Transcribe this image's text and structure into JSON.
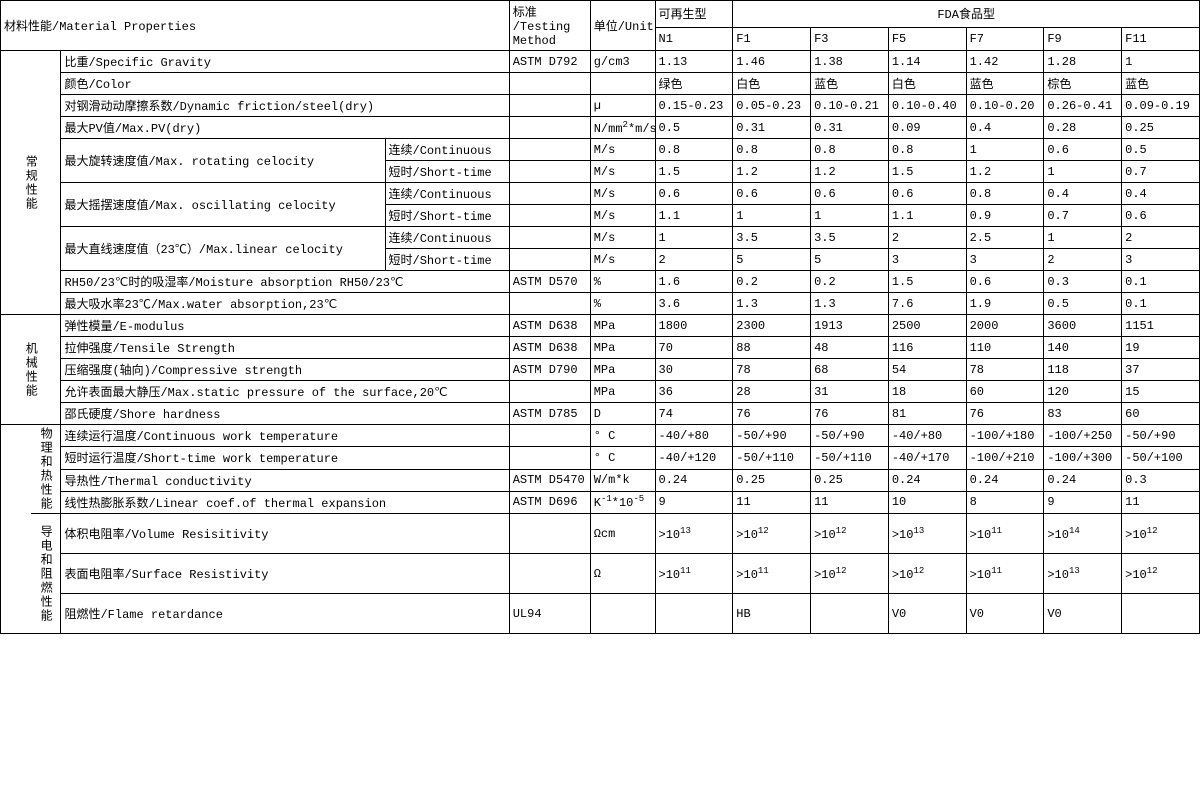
{
  "header": {
    "material_properties": "材料性能/Material Properties",
    "testing_method": "标准\n/Testing\nMethod",
    "unit": "单位/Unit",
    "renewable": "可再生型",
    "fda_food": "FDA食品型",
    "cols": [
      "N1",
      "F1",
      "F3",
      "F5",
      "F7",
      "F9",
      "F11"
    ]
  },
  "categories": {
    "general": "常规性能",
    "mechanical": "机械性能",
    "phys_therm": "物理和热性能",
    "elec_flame": "导电和阻燃性能"
  },
  "sub": {
    "continuous": "连续/Continuous",
    "short_time": "短时/Short-time"
  },
  "props": {
    "specific_gravity": "比重/Specific Gravity",
    "color": "颜色/Color",
    "dyn_friction": "对钢滑动动摩擦系数/Dynamic friction/steel(dry)",
    "max_pv": "最大PV值/Max.PV(dry)",
    "max_rot": "最大旋转速度值/Max. rotating celocity",
    "max_osc": "最大摇摆速度值/Max. oscillating celocity",
    "max_lin": "最大直线速度值（23℃）/Max.linear celocity",
    "moisture": "RH50/23℃时的吸湿率/Moisture absorption RH50/23℃",
    "max_water": "最大吸水率23℃/Max.water absorption,23℃",
    "e_modulus": "弹性模量/E-modulus",
    "tensile": "拉伸强度/Tensile Strength",
    "compressive": "压缩强度(轴向)/Compressive strength",
    "max_static": "允许表面最大静压/Max.static pressure of the surface,20℃",
    "shore": "邵氏硬度/Shore hardness",
    "cont_temp": "连续运行温度/Continuous work temperature",
    "short_temp": "短时运行温度/Short-time work temperature",
    "therm_cond": "导热性/Thermal conductivity",
    "lin_exp": "线性热膨胀系数/Linear coef.of thermal expansion",
    "vol_res": "体积电阻率/Volume Resisitivity",
    "surf_res": "表面电阻率/Surface Resistivity",
    "flame": "阻燃性/Flame retardance"
  },
  "std": {
    "specific_gravity": "ASTM D792",
    "moisture": "ASTM D570",
    "e_modulus": "ASTM D638",
    "tensile": "ASTM D638",
    "compressive": "ASTM D790",
    "shore": "ASTM D785",
    "therm_cond": "ASTM D5470",
    "lin_exp": "ASTM D696",
    "flame": "UL94"
  },
  "unit": {
    "specific_gravity": "g/cm3",
    "dyn_friction": "µ",
    "max_pv_html": "N/mm<sup>2</sup>*m/s",
    "ms": "M/s",
    "pct": "%",
    "mpa": "MPa",
    "d": "D",
    "degc": "° C",
    "wmk": "W/m*k",
    "lin_exp_html": "K<sup>-1</sup>*10<sup>-5</sup>",
    "ohmcm": "Ωcm",
    "ohm": "Ω"
  },
  "v": {
    "specific_gravity": [
      "1.13",
      "1.46",
      "1.38",
      "1.14",
      "1.42",
      "1.28",
      "1"
    ],
    "color": [
      "绿色",
      "白色",
      "蓝色",
      "白色",
      "蓝色",
      "棕色",
      "蓝色"
    ],
    "dyn_friction": [
      "0.15-0.23",
      "0.05-0.23",
      "0.10-0.21",
      "0.10-0.40",
      "0.10-0.20",
      "0.26-0.41",
      "0.09-0.19"
    ],
    "max_pv": [
      "0.5",
      "0.31",
      "0.31",
      "0.09",
      "0.4",
      "0.28",
      "0.25"
    ],
    "max_rot_c": [
      "0.8",
      "0.8",
      "0.8",
      "0.8",
      "1",
      "0.6",
      "0.5"
    ],
    "max_rot_s": [
      "1.5",
      "1.2",
      "1.2",
      "1.5",
      "1.2",
      "1",
      "0.7"
    ],
    "max_osc_c": [
      "0.6",
      "0.6",
      "0.6",
      "0.6",
      "0.8",
      "0.4",
      "0.4"
    ],
    "max_osc_s": [
      "1.1",
      "1",
      "1",
      "1.1",
      "0.9",
      "0.7",
      "0.6"
    ],
    "max_lin_c": [
      "1",
      "3.5",
      "3.5",
      "2",
      "2.5",
      "1",
      "2"
    ],
    "max_lin_s": [
      "2",
      "5",
      "5",
      "3",
      "3",
      "2",
      "3"
    ],
    "moisture": [
      "1.6",
      "0.2",
      "0.2",
      "1.5",
      "0.6",
      "0.3",
      "0.1"
    ],
    "max_water": [
      "3.6",
      "1.3",
      "1.3",
      "7.6",
      "1.9",
      "0.5",
      "0.1"
    ],
    "e_modulus": [
      "1800",
      "2300",
      "1913",
      "2500",
      "2000",
      "3600",
      "1151"
    ],
    "tensile": [
      "70",
      "88",
      "48",
      "116",
      "110",
      "140",
      "19"
    ],
    "compressive": [
      "30",
      "78",
      "68",
      "54",
      "78",
      "118",
      "37"
    ],
    "max_static": [
      "36",
      "28",
      "31",
      "18",
      "60",
      "120",
      "15"
    ],
    "shore": [
      "74",
      "76",
      "76",
      "81",
      "76",
      "83",
      "60"
    ],
    "cont_temp": [
      "-40/+80",
      "-50/+90",
      "-50/+90",
      "-40/+80",
      "-100/+180",
      "-100/+250",
      "-50/+90"
    ],
    "short_temp": [
      "-40/+120",
      "-50/+110",
      "-50/+110",
      "-40/+170",
      "-100/+210",
      "-100/+300",
      "-50/+100"
    ],
    "therm_cond": [
      "0.24",
      "0.25",
      "0.25",
      "0.24",
      "0.24",
      "0.24",
      "0.3"
    ],
    "lin_exp": [
      "9",
      "11",
      "11",
      "10",
      "8",
      "9",
      "11"
    ],
    "vol_res_html": [
      ">10<sup>13</sup>",
      ">10<sup>12</sup>",
      ">10<sup>12</sup>",
      ">10<sup>13</sup>",
      ">10<sup>11</sup>",
      ">10<sup>14</sup>",
      ">10<sup>12</sup>"
    ],
    "surf_res_html": [
      ">10<sup>11</sup>",
      ">10<sup>11</sup>",
      ">10<sup>12</sup>",
      ">10<sup>12</sup>",
      ">10<sup>11</sup>",
      ">10<sup>13</sup>",
      ">10<sup>12</sup>"
    ],
    "flame": [
      "",
      "HB",
      "",
      "V0",
      "V0",
      "V0",
      ""
    ]
  }
}
